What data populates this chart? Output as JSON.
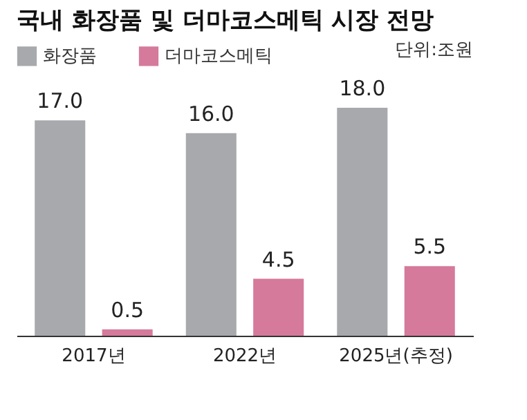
{
  "chart_data": {
    "type": "bar",
    "title": "국내 화장품 및 더마코스메틱 시장 전망",
    "categories": [
      "2017년",
      "2022년",
      "2025년(추정)"
    ],
    "series": [
      {
        "name": "화장품",
        "color": "#a7a9ac",
        "values": [
          17.0,
          16.0,
          18.0
        ],
        "value_labels": [
          "17.0",
          "16.0",
          "18.0"
        ]
      },
      {
        "name": "더마코스메틱",
        "color": "#d57a9b",
        "values": [
          0.5,
          4.5,
          5.5
        ],
        "value_labels": [
          "0.5",
          "4.5",
          "5.5"
        ]
      }
    ],
    "annotations": [
      "단위:조원"
    ],
    "legend": "top left",
    "grid": false
  }
}
